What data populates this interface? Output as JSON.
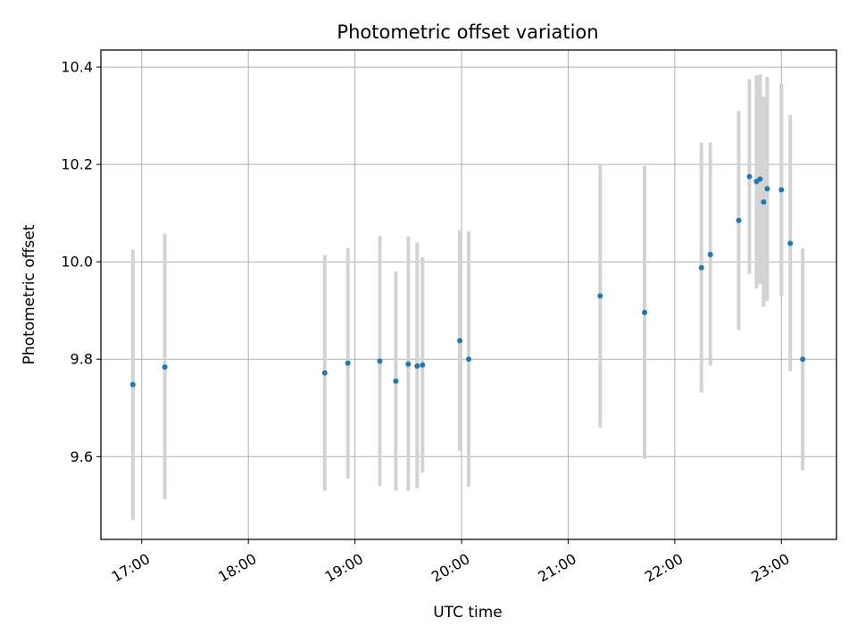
{
  "chart_data": {
    "type": "scatter",
    "title": "Photometric offset variation",
    "xlabel": "UTC time",
    "ylabel": "Photometric offset",
    "x_tick_labels": [
      "17:00",
      "18:00",
      "19:00",
      "20:00",
      "21:00",
      "22:00",
      "23:00"
    ],
    "y_tick_labels": [
      "9.6",
      "9.8",
      "10.0",
      "10.2",
      "10.4"
    ],
    "xlim": [
      "16:37",
      "23:31"
    ],
    "ylim": [
      9.43,
      10.435
    ],
    "grid": true,
    "colors": {
      "marker": "#1f77b4",
      "errorbar": "#d3d3d3",
      "grid": "#b0b0b0"
    },
    "points": [
      {
        "x": "16:55",
        "y": 9.748,
        "ylow": 9.47,
        "yhigh": 10.025
      },
      {
        "x": "17:13",
        "y": 9.784,
        "ylow": 9.512,
        "yhigh": 10.058
      },
      {
        "x": "18:43",
        "y": 9.772,
        "ylow": 9.53,
        "yhigh": 10.014
      },
      {
        "x": "18:56",
        "y": 9.792,
        "ylow": 9.555,
        "yhigh": 10.028
      },
      {
        "x": "19:14",
        "y": 9.796,
        "ylow": 9.54,
        "yhigh": 10.053
      },
      {
        "x": "19:23",
        "y": 9.755,
        "ylow": 9.53,
        "yhigh": 9.98
      },
      {
        "x": "19:30",
        "y": 9.79,
        "ylow": 9.53,
        "yhigh": 10.052
      },
      {
        "x": "19:35",
        "y": 9.786,
        "ylow": 9.535,
        "yhigh": 10.04
      },
      {
        "x": "19:38",
        "y": 9.788,
        "ylow": 9.567,
        "yhigh": 10.01
      },
      {
        "x": "19:59",
        "y": 9.838,
        "ylow": 9.612,
        "yhigh": 10.065
      },
      {
        "x": "20:04",
        "y": 9.8,
        "ylow": 9.538,
        "yhigh": 10.063
      },
      {
        "x": "21:18",
        "y": 9.93,
        "ylow": 9.66,
        "yhigh": 10.2
      },
      {
        "x": "21:43",
        "y": 9.896,
        "ylow": 9.595,
        "yhigh": 10.197
      },
      {
        "x": "22:15",
        "y": 9.988,
        "ylow": 9.732,
        "yhigh": 10.245
      },
      {
        "x": "22:20",
        "y": 10.015,
        "ylow": 9.787,
        "yhigh": 10.245
      },
      {
        "x": "22:36",
        "y": 10.085,
        "ylow": 9.86,
        "yhigh": 10.31
      },
      {
        "x": "22:42",
        "y": 10.175,
        "ylow": 9.975,
        "yhigh": 10.375
      },
      {
        "x": "22:46",
        "y": 10.165,
        "ylow": 9.945,
        "yhigh": 10.383
      },
      {
        "x": "22:48",
        "y": 10.17,
        "ylow": 9.955,
        "yhigh": 10.385
      },
      {
        "x": "22:50",
        "y": 10.123,
        "ylow": 9.908,
        "yhigh": 10.34
      },
      {
        "x": "22:52",
        "y": 10.15,
        "ylow": 9.92,
        "yhigh": 10.38
      },
      {
        "x": "23:00",
        "y": 10.148,
        "ylow": 9.93,
        "yhigh": 10.365
      },
      {
        "x": "23:05",
        "y": 10.038,
        "ylow": 9.775,
        "yhigh": 10.302
      },
      {
        "x": "23:12",
        "y": 9.8,
        "ylow": 9.572,
        "yhigh": 10.027
      }
    ]
  }
}
